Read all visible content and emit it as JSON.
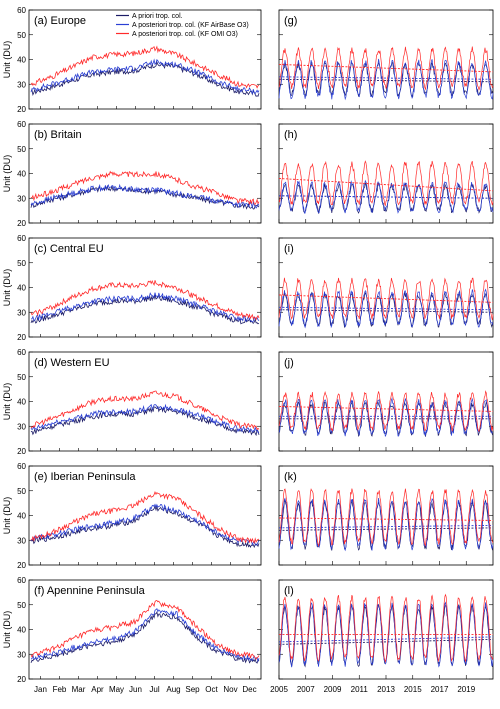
{
  "figure": {
    "y_axis_label": "Unit (DU)",
    "colors": {
      "prior": "#1c1c66",
      "airbase": "#2a3fd4",
      "omi": "#ff2a2a"
    },
    "legend": {
      "placement": "top-right of panel (a)",
      "entries": [
        {
          "key": "prior",
          "label": "A priori trop. col."
        },
        {
          "key": "airbase",
          "label": "A posteriori trop. col. (KF AirBase O3)"
        },
        {
          "key": "omi",
          "label": "A posteriori trop. col. (KF OMI O3)"
        }
      ]
    }
  },
  "chart_data": [
    {
      "type": "line",
      "panel": "left",
      "title": "(a) Europe",
      "x": [
        "Jan",
        "Feb",
        "Mar",
        "Apr",
        "May",
        "Jun",
        "Jul",
        "Aug",
        "Sep",
        "Oct",
        "Nov",
        "Dec"
      ],
      "x_unit": "month of year (daily climatology)",
      "ylim": [
        20,
        60
      ],
      "yticks": [
        20,
        30,
        40,
        50,
        60
      ],
      "series": [
        {
          "key": "prior",
          "values": [
            26.5,
            29,
            31.5,
            34,
            35,
            35.5,
            38,
            37,
            34,
            30,
            27,
            26
          ]
        },
        {
          "key": "airbase",
          "values": [
            27.5,
            30,
            32.5,
            35,
            36,
            36.5,
            39,
            38,
            35,
            31,
            28,
            27
          ]
        },
        {
          "key": "omi",
          "values": [
            30,
            33,
            37,
            41,
            42,
            42.5,
            44.5,
            42,
            38,
            34,
            30,
            29
          ]
        }
      ]
    },
    {
      "type": "line",
      "panel": "left",
      "title": "(b) Britain",
      "x": [
        "Jan",
        "Feb",
        "Mar",
        "Apr",
        "May",
        "Jun",
        "Jul",
        "Aug",
        "Sep",
        "Oct",
        "Nov",
        "Dec"
      ],
      "x_unit": "month of year (daily climatology)",
      "ylim": [
        20,
        60
      ],
      "yticks": [
        20,
        30,
        40,
        50,
        60
      ],
      "series": [
        {
          "key": "prior",
          "values": [
            27,
            29.5,
            31.5,
            33.5,
            34,
            33,
            33,
            31.5,
            30,
            28.5,
            27,
            26.5
          ]
        },
        {
          "key": "airbase",
          "values": [
            27.5,
            30,
            32,
            34,
            34.5,
            33.5,
            33.5,
            32,
            30.5,
            29,
            27.5,
            27
          ]
        },
        {
          "key": "omi",
          "values": [
            30,
            32.5,
            35.5,
            38.5,
            40,
            39.5,
            40,
            37.5,
            34.5,
            32,
            29,
            28.5
          ]
        }
      ]
    },
    {
      "type": "line",
      "panel": "left",
      "title": "(c) Central EU",
      "x": [
        "Jan",
        "Feb",
        "Mar",
        "Apr",
        "May",
        "Jun",
        "Jul",
        "Aug",
        "Sep",
        "Oct",
        "Nov",
        "Dec"
      ],
      "x_unit": "month of year (daily climatology)",
      "ylim": [
        20,
        60
      ],
      "yticks": [
        20,
        30,
        40,
        50,
        60
      ],
      "series": [
        {
          "key": "prior",
          "values": [
            26,
            28.5,
            31,
            33.5,
            34.5,
            34.5,
            36,
            34.5,
            32,
            29,
            26.5,
            26
          ]
        },
        {
          "key": "airbase",
          "values": [
            27,
            29.5,
            32,
            34.5,
            35.5,
            35.5,
            37,
            35.5,
            33,
            30,
            27.5,
            27
          ]
        },
        {
          "key": "omi",
          "values": [
            29,
            32,
            36,
            39.5,
            41,
            40.5,
            42,
            40,
            36,
            32.5,
            29,
            28
          ]
        }
      ]
    },
    {
      "type": "line",
      "panel": "left",
      "title": "(d) Western EU",
      "x": [
        "Jan",
        "Feb",
        "Mar",
        "Apr",
        "May",
        "Jun",
        "Jul",
        "Aug",
        "Sep",
        "Oct",
        "Nov",
        "Dec"
      ],
      "x_unit": "month of year (daily climatology)",
      "ylim": [
        20,
        60
      ],
      "yticks": [
        20,
        30,
        40,
        50,
        60
      ],
      "series": [
        {
          "key": "prior",
          "values": [
            27.5,
            30,
            32,
            34,
            35,
            35,
            37,
            36,
            33.5,
            30.5,
            28,
            27.5
          ]
        },
        {
          "key": "airbase",
          "values": [
            28.5,
            31,
            33,
            35,
            36,
            36,
            38,
            37,
            34.5,
            31.5,
            29,
            28.5
          ]
        },
        {
          "key": "omi",
          "values": [
            30,
            33,
            36.5,
            40,
            41,
            41,
            43.5,
            42,
            38,
            34,
            30.5,
            29.5
          ]
        }
      ]
    },
    {
      "type": "line",
      "panel": "left",
      "title": "(e) Iberian Peninsula",
      "x": [
        "Jan",
        "Feb",
        "Mar",
        "Apr",
        "May",
        "Jun",
        "Jul",
        "Aug",
        "Sep",
        "Oct",
        "Nov",
        "Dec"
      ],
      "x_unit": "month of year (daily climatology)",
      "ylim": [
        20,
        60
      ],
      "yticks": [
        20,
        30,
        40,
        50,
        60
      ],
      "series": [
        {
          "key": "prior",
          "values": [
            29.5,
            31,
            33,
            35,
            36,
            38,
            43,
            41,
            37,
            32,
            28.5,
            28
          ]
        },
        {
          "key": "airbase",
          "values": [
            30.5,
            32,
            34,
            36,
            37,
            39,
            44,
            42,
            38,
            33,
            29.5,
            29
          ]
        },
        {
          "key": "omi",
          "values": [
            30.5,
            33,
            37,
            40.5,
            42,
            44,
            49,
            47,
            41,
            35,
            30.5,
            29.5
          ]
        }
      ]
    },
    {
      "type": "line",
      "panel": "left",
      "title": "(f) Apennine Peninsula",
      "x": [
        "Jan",
        "Feb",
        "Mar",
        "Apr",
        "May",
        "Jun",
        "Jul",
        "Aug",
        "Sep",
        "Oct",
        "Nov",
        "Dec"
      ],
      "x_unit": "month of year (daily climatology)",
      "ylim": [
        20,
        60
      ],
      "yticks": [
        20,
        30,
        40,
        50,
        60
      ],
      "series": [
        {
          "key": "prior",
          "values": [
            27.5,
            29,
            31.5,
            34,
            35,
            38,
            46,
            45,
            37,
            31,
            28,
            27
          ]
        },
        {
          "key": "airbase",
          "values": [
            28.5,
            30,
            32.5,
            35,
            36,
            39,
            47.5,
            46.5,
            38,
            32,
            29,
            28
          ]
        },
        {
          "key": "omi",
          "values": [
            29.5,
            32,
            36,
            39.5,
            41,
            43,
            51,
            49,
            41,
            34,
            30,
            29
          ]
        }
      ]
    },
    {
      "type": "line",
      "panel": "right",
      "title": "(g)",
      "x_ticks": [
        "2005",
        "2007",
        "2009",
        "2011",
        "2013",
        "2015",
        "2017",
        "2019"
      ],
      "x_range": [
        2005,
        2021
      ],
      "ylim": [
        20,
        60
      ],
      "yticks": [
        20,
        30,
        40,
        50,
        60
      ],
      "seasonal_cycle": "annual, peak in July",
      "series": [
        {
          "key": "prior",
          "summer_peak": 38,
          "winter_low": 26,
          "trend_mean": [
            32,
            31
          ]
        },
        {
          "key": "airbase",
          "summer_peak": 39,
          "winter_low": 25,
          "trend_mean": [
            33,
            32
          ]
        },
        {
          "key": "omi",
          "summer_peak": 44,
          "winter_low": 29,
          "trend_mean": [
            38,
            35
          ]
        }
      ]
    },
    {
      "type": "line",
      "panel": "right",
      "title": "(h)",
      "x_ticks": [
        "2005",
        "2007",
        "2009",
        "2011",
        "2013",
        "2015",
        "2017",
        "2019"
      ],
      "x_range": [
        2005,
        2021
      ],
      "ylim": [
        20,
        60
      ],
      "yticks": [
        20,
        30,
        40,
        50,
        60
      ],
      "seasonal_cycle": "annual, peak in spring",
      "series": [
        {
          "key": "prior",
          "summer_peak": 35,
          "winter_low": 25,
          "trend_mean": [
            31,
            30
          ]
        },
        {
          "key": "airbase",
          "summer_peak": 36,
          "winter_low": 25,
          "trend_mean": [
            31,
            30
          ]
        },
        {
          "key": "omi",
          "summer_peak": 44,
          "winter_low": 28,
          "trend_mean": [
            38,
            33
          ]
        }
      ]
    },
    {
      "type": "line",
      "panel": "right",
      "title": "(i)",
      "x_ticks": [
        "2005",
        "2007",
        "2009",
        "2011",
        "2013",
        "2015",
        "2017",
        "2019"
      ],
      "x_range": [
        2005,
        2021
      ],
      "ylim": [
        20,
        60
      ],
      "yticks": [
        20,
        30,
        40,
        50,
        60
      ],
      "seasonal_cycle": "annual, peak in July",
      "series": [
        {
          "key": "prior",
          "summer_peak": 37,
          "winter_low": 25,
          "trend_mean": [
            31,
            30
          ]
        },
        {
          "key": "airbase",
          "summer_peak": 38,
          "winter_low": 25,
          "trend_mean": [
            32,
            31
          ]
        },
        {
          "key": "omi",
          "summer_peak": 43,
          "winter_low": 28,
          "trend_mean": [
            37,
            34
          ]
        }
      ]
    },
    {
      "type": "line",
      "panel": "right",
      "title": "(j)",
      "x_ticks": [
        "2005",
        "2007",
        "2009",
        "2011",
        "2013",
        "2015",
        "2017",
        "2019"
      ],
      "x_range": [
        2005,
        2021
      ],
      "ylim": [
        20,
        60
      ],
      "yticks": [
        20,
        30,
        40,
        50,
        60
      ],
      "seasonal_cycle": "annual, peak in July",
      "series": [
        {
          "key": "prior",
          "summer_peak": 39,
          "winter_low": 27,
          "trend_mean": [
            33,
            33
          ]
        },
        {
          "key": "airbase",
          "summer_peak": 40,
          "winter_low": 27,
          "trend_mean": [
            34,
            34
          ]
        },
        {
          "key": "omi",
          "summer_peak": 43,
          "winter_low": 29,
          "trend_mean": [
            38,
            36
          ]
        }
      ]
    },
    {
      "type": "line",
      "panel": "right",
      "title": "(k)",
      "x_ticks": [
        "2005",
        "2007",
        "2009",
        "2011",
        "2013",
        "2015",
        "2017",
        "2019"
      ],
      "x_range": [
        2005,
        2021
      ],
      "ylim": [
        20,
        60
      ],
      "yticks": [
        20,
        30,
        40,
        50,
        60
      ],
      "seasonal_cycle": "annual, peak in July",
      "series": [
        {
          "key": "prior",
          "summer_peak": 45,
          "winter_low": 27,
          "trend_mean": [
            34,
            35
          ]
        },
        {
          "key": "airbase",
          "summer_peak": 46,
          "winter_low": 27,
          "trend_mean": [
            35,
            36
          ]
        },
        {
          "key": "omi",
          "summer_peak": 50,
          "winter_low": 29,
          "trend_mean": [
            39,
            38
          ]
        }
      ]
    },
    {
      "type": "line",
      "panel": "right",
      "title": "(l)",
      "x_ticks": [
        "2005",
        "2007",
        "2009",
        "2011",
        "2013",
        "2015",
        "2017",
        "2019"
      ],
      "x_range": [
        2005,
        2021
      ],
      "ylim": [
        20,
        60
      ],
      "yticks": [
        20,
        30,
        40,
        50,
        60
      ],
      "seasonal_cycle": "annual, peak in July",
      "series": [
        {
          "key": "prior",
          "summer_peak": 49,
          "winter_low": 26,
          "trend_mean": [
            34,
            36
          ]
        },
        {
          "key": "airbase",
          "summer_peak": 50,
          "winter_low": 26,
          "trend_mean": [
            35,
            37
          ]
        },
        {
          "key": "omi",
          "summer_peak": 53,
          "winter_low": 28,
          "trend_mean": [
            38,
            38
          ]
        }
      ]
    }
  ]
}
